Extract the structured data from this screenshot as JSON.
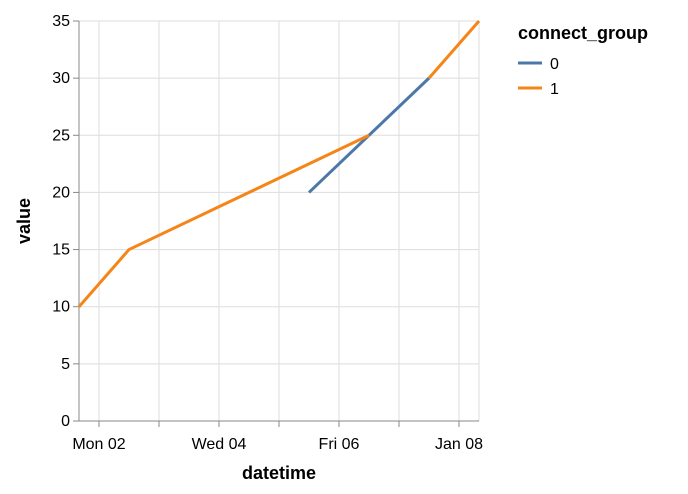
{
  "chart_data": {
    "type": "line",
    "xlabel": "datetime",
    "ylabel": "value",
    "x_type": "temporal",
    "x_domain": [
      "2012-01-01T16:00",
      "2012-01-08T08:00"
    ],
    "ylim": [
      0,
      35
    ],
    "y_ticks": [
      0,
      5,
      10,
      15,
      20,
      25,
      30,
      35
    ],
    "x_ticks": [
      {
        "date": "2012-01-02",
        "label": "Mon 02"
      },
      {
        "date": "2012-01-03",
        "label": ""
      },
      {
        "date": "2012-01-04",
        "label": "Wed 04"
      },
      {
        "date": "2012-01-05",
        "label": ""
      },
      {
        "date": "2012-01-06",
        "label": "Fri 06"
      },
      {
        "date": "2012-01-07",
        "label": ""
      },
      {
        "date": "2012-01-08",
        "label": "Jan 08"
      }
    ],
    "grid": true,
    "legend": {
      "title": "connect_group",
      "position": "top-right"
    },
    "series": [
      {
        "name": "0",
        "color": "#4c78a8",
        "points": [
          {
            "x": "2012-01-05T12:00",
            "y": 20
          },
          {
            "x": "2012-01-07T12:00",
            "y": 30
          }
        ]
      },
      {
        "name": "1",
        "color": "#f58518",
        "points": [
          {
            "x": "2012-01-01T16:00",
            "y": 10
          },
          {
            "x": "2012-01-02T12:00",
            "y": 15
          },
          {
            "x": "2012-01-06T12:00",
            "y": 25
          }
        ]
      },
      {
        "name": "1",
        "color": "#f58518",
        "points": [
          {
            "x": "2012-01-07T12:00",
            "y": 30
          },
          {
            "x": "2012-01-08T08:00",
            "y": 35
          }
        ]
      }
    ]
  }
}
